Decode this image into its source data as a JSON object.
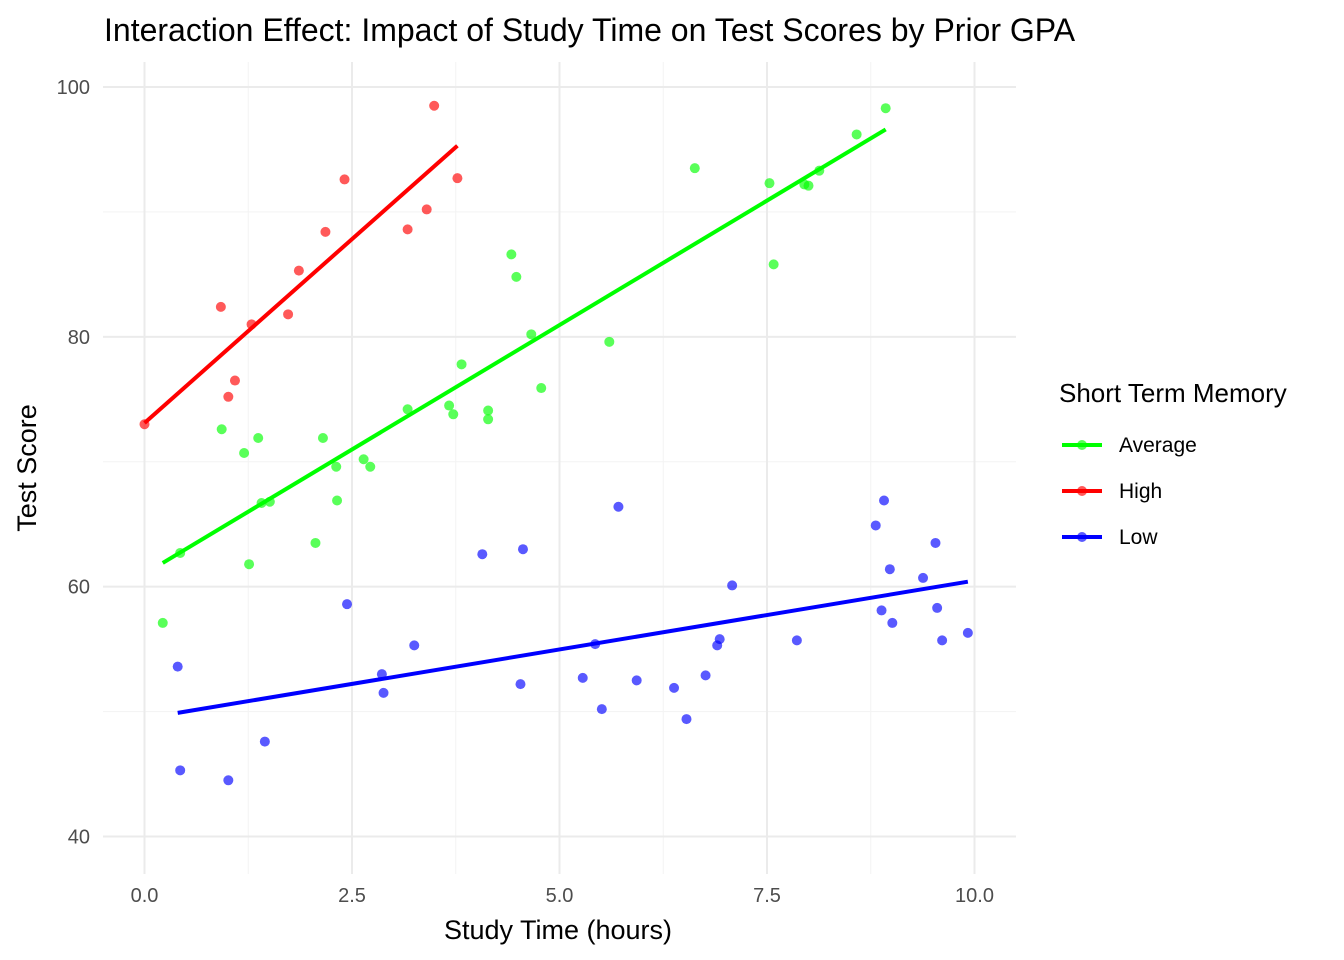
{
  "chart_data": {
    "type": "scatter",
    "title": "Interaction Effect: Impact of Study Time on Test Scores by Prior GPA",
    "xlabel": "Study Time (hours)",
    "ylabel": "Test Score",
    "xlim": [
      -0.5,
      10.5
    ],
    "ylim": [
      37,
      102
    ],
    "x_ticks": [
      0.0,
      2.5,
      5.0,
      7.5,
      10.0
    ],
    "x_tick_labels": [
      "0.0",
      "2.5",
      "5.0",
      "7.5",
      "10.0"
    ],
    "y_ticks": [
      40,
      60,
      80,
      100
    ],
    "y_tick_labels": [
      "40",
      "60",
      "80",
      "100"
    ],
    "grid": true,
    "legend": {
      "title": "Short Term Memory",
      "position": "right"
    },
    "series": [
      {
        "name": "Average",
        "color": "#00ff00",
        "points": [
          [
            0.22,
            57.1
          ],
          [
            0.43,
            62.7
          ],
          [
            0.93,
            72.6
          ],
          [
            1.2,
            70.7
          ],
          [
            1.26,
            61.8
          ],
          [
            1.37,
            71.9
          ],
          [
            1.41,
            66.7
          ],
          [
            1.51,
            66.8
          ],
          [
            2.06,
            63.5
          ],
          [
            2.15,
            71.9
          ],
          [
            2.31,
            69.6
          ],
          [
            2.32,
            66.9
          ],
          [
            2.64,
            70.2
          ],
          [
            2.72,
            69.6
          ],
          [
            3.17,
            74.2
          ],
          [
            3.67,
            74.5
          ],
          [
            3.72,
            73.8
          ],
          [
            3.82,
            77.8
          ],
          [
            4.14,
            74.1
          ],
          [
            4.14,
            73.4
          ],
          [
            4.42,
            86.6
          ],
          [
            4.48,
            84.8
          ],
          [
            4.66,
            80.2
          ],
          [
            4.78,
            75.9
          ],
          [
            5.6,
            79.6
          ],
          [
            6.63,
            93.5
          ],
          [
            7.53,
            92.3
          ],
          [
            7.58,
            85.8
          ],
          [
            7.95,
            92.2
          ],
          [
            8.0,
            92.1
          ],
          [
            8.13,
            93.3
          ],
          [
            8.58,
            96.2
          ],
          [
            8.93,
            98.3
          ]
        ],
        "fit": {
          "x": [
            0.22,
            8.93
          ],
          "y": [
            61.9,
            96.6
          ]
        }
      },
      {
        "name": "High",
        "color": "#ff0000",
        "points": [
          [
            0.0,
            73.0
          ],
          [
            0.92,
            82.4
          ],
          [
            1.01,
            75.2
          ],
          [
            1.09,
            76.5
          ],
          [
            1.29,
            81.0
          ],
          [
            1.73,
            81.8
          ],
          [
            1.86,
            85.3
          ],
          [
            2.18,
            88.4
          ],
          [
            2.41,
            92.6
          ],
          [
            3.17,
            88.6
          ],
          [
            3.4,
            90.2
          ],
          [
            3.49,
            98.5
          ],
          [
            3.77,
            92.7
          ]
        ],
        "fit": {
          "x": [
            0.0,
            3.77
          ],
          "y": [
            73.1,
            95.3
          ]
        }
      },
      {
        "name": "Low",
        "color": "#0000ff",
        "points": [
          [
            0.4,
            53.6
          ],
          [
            0.43,
            45.3
          ],
          [
            1.01,
            44.5
          ],
          [
            1.45,
            47.6
          ],
          [
            2.44,
            58.6
          ],
          [
            2.86,
            53.0
          ],
          [
            2.88,
            51.5
          ],
          [
            3.25,
            55.3
          ],
          [
            4.07,
            62.6
          ],
          [
            4.53,
            52.2
          ],
          [
            4.56,
            63.0
          ],
          [
            5.28,
            52.7
          ],
          [
            5.43,
            55.4
          ],
          [
            5.51,
            50.2
          ],
          [
            5.71,
            66.4
          ],
          [
            5.93,
            52.5
          ],
          [
            6.38,
            51.9
          ],
          [
            6.53,
            49.4
          ],
          [
            6.76,
            52.9
          ],
          [
            6.9,
            55.3
          ],
          [
            6.93,
            55.8
          ],
          [
            7.08,
            60.1
          ],
          [
            7.86,
            55.7
          ],
          [
            8.81,
            64.9
          ],
          [
            8.88,
            58.1
          ],
          [
            8.91,
            66.9
          ],
          [
            8.98,
            61.4
          ],
          [
            9.01,
            57.1
          ],
          [
            9.38,
            60.7
          ],
          [
            9.53,
            63.5
          ],
          [
            9.55,
            58.3
          ],
          [
            9.61,
            55.7
          ],
          [
            9.92,
            56.3
          ]
        ],
        "fit": {
          "x": [
            0.4,
            9.92
          ],
          "y": [
            49.9,
            60.4
          ]
        }
      }
    ]
  }
}
